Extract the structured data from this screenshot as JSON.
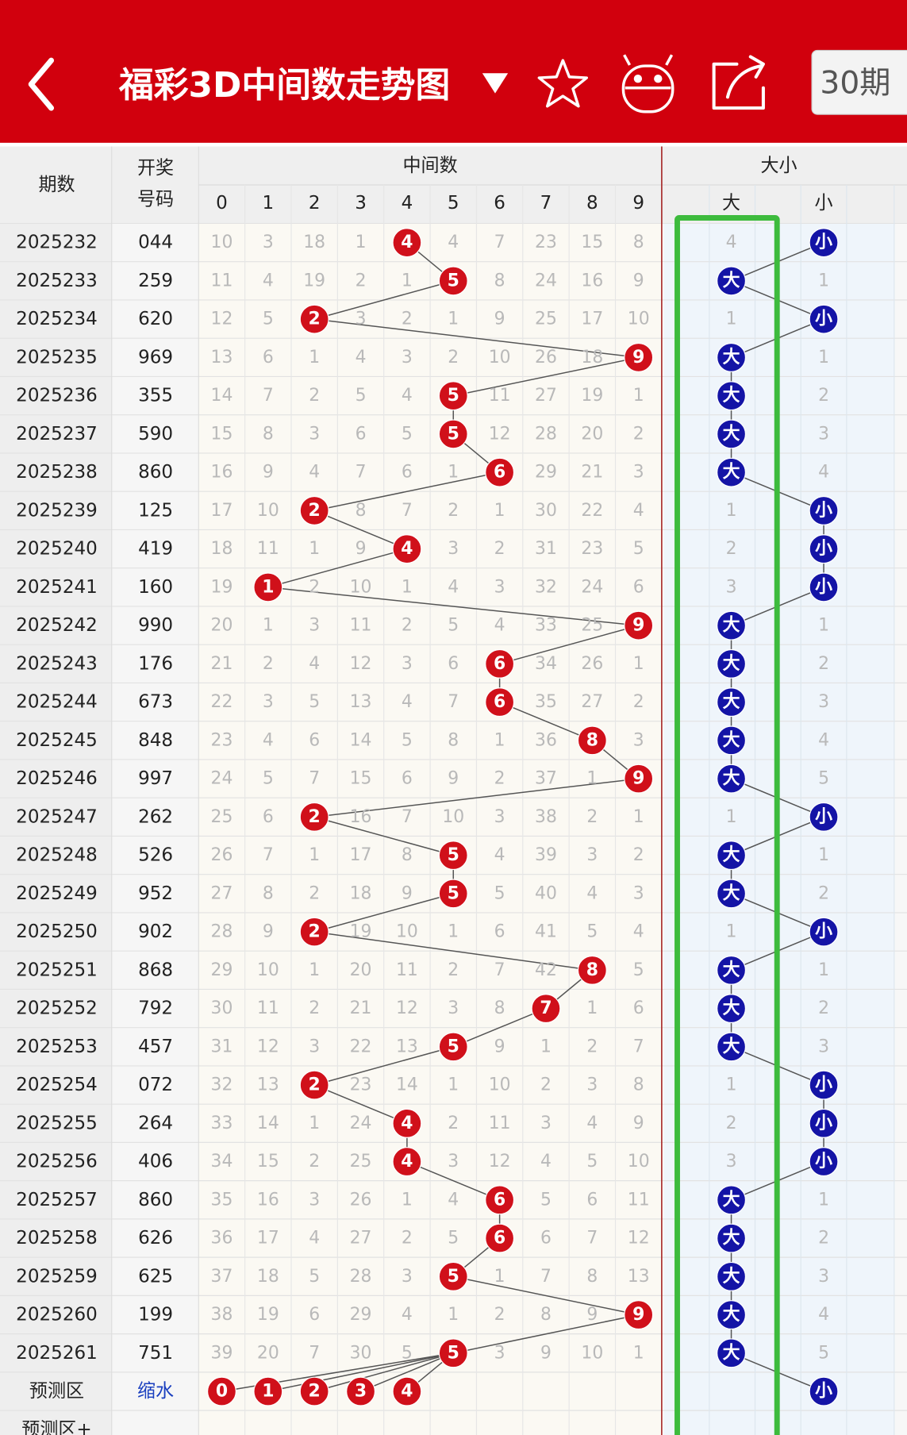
{
  "header": {
    "title": "福彩3D中间数走势图",
    "period_button": "30期"
  },
  "table": {
    "col_period": "期数",
    "col_code": [
      "开奖",
      "号码"
    ],
    "group_middle": "中间数",
    "digits": [
      0,
      1,
      2,
      3,
      4,
      5,
      6,
      7,
      8,
      9
    ],
    "group_size": "大小",
    "col_big": "大",
    "col_small": "小",
    "rows": [
      {
        "period": "2025232",
        "code": "044",
        "cells": [
          10,
          3,
          18,
          1,
          4,
          4,
          7,
          23,
          15,
          8
        ],
        "big": 4,
        "small": "小"
      },
      {
        "period": "2025233",
        "code": "259",
        "cells": [
          11,
          4,
          19,
          2,
          1,
          5,
          8,
          24,
          16,
          9
        ],
        "big": "大",
        "small": 1
      },
      {
        "period": "2025234",
        "code": "620",
        "cells": [
          12,
          5,
          2,
          3,
          2,
          1,
          9,
          25,
          17,
          10
        ],
        "big": 1,
        "small": "小"
      },
      {
        "period": "2025235",
        "code": "969",
        "cells": [
          13,
          6,
          1,
          4,
          3,
          2,
          10,
          26,
          18,
          9
        ],
        "big": "大",
        "small": 1
      },
      {
        "period": "2025236",
        "code": "355",
        "cells": [
          14,
          7,
          2,
          5,
          4,
          5,
          11,
          27,
          19,
          1
        ],
        "big": "大",
        "small": 2
      },
      {
        "period": "2025237",
        "code": "590",
        "cells": [
          15,
          8,
          3,
          6,
          5,
          5,
          12,
          28,
          20,
          2
        ],
        "big": "大",
        "small": 3
      },
      {
        "period": "2025238",
        "code": "860",
        "cells": [
          16,
          9,
          4,
          7,
          6,
          1,
          6,
          29,
          21,
          3
        ],
        "big": "大",
        "small": 4
      },
      {
        "period": "2025239",
        "code": "125",
        "cells": [
          17,
          10,
          2,
          8,
          7,
          2,
          1,
          30,
          22,
          4
        ],
        "big": 1,
        "small": "小"
      },
      {
        "period": "2025240",
        "code": "419",
        "cells": [
          18,
          11,
          1,
          9,
          4,
          3,
          2,
          31,
          23,
          5
        ],
        "big": 2,
        "small": "小"
      },
      {
        "period": "2025241",
        "code": "160",
        "cells": [
          19,
          1,
          2,
          10,
          1,
          4,
          3,
          32,
          24,
          6
        ],
        "big": 3,
        "small": "小"
      },
      {
        "period": "2025242",
        "code": "990",
        "cells": [
          20,
          1,
          3,
          11,
          2,
          5,
          4,
          33,
          25,
          9
        ],
        "big": "大",
        "small": 1
      },
      {
        "period": "2025243",
        "code": "176",
        "cells": [
          21,
          2,
          4,
          12,
          3,
          6,
          6,
          34,
          26,
          1
        ],
        "big": "大",
        "small": 2
      },
      {
        "period": "2025244",
        "code": "673",
        "cells": [
          22,
          3,
          5,
          13,
          4,
          7,
          6,
          35,
          27,
          2
        ],
        "big": "大",
        "small": 3
      },
      {
        "period": "2025245",
        "code": "848",
        "cells": [
          23,
          4,
          6,
          14,
          5,
          8,
          1,
          36,
          8,
          3
        ],
        "big": "大",
        "small": 4
      },
      {
        "period": "2025246",
        "code": "997",
        "cells": [
          24,
          5,
          7,
          15,
          6,
          9,
          2,
          37,
          1,
          9
        ],
        "big": "大",
        "small": 5
      },
      {
        "period": "2025247",
        "code": "262",
        "cells": [
          25,
          6,
          2,
          16,
          7,
          10,
          3,
          38,
          2,
          1
        ],
        "big": 1,
        "small": "小"
      },
      {
        "period": "2025248",
        "code": "526",
        "cells": [
          26,
          7,
          1,
          17,
          8,
          5,
          4,
          39,
          3,
          2
        ],
        "big": "大",
        "small": 1
      },
      {
        "period": "2025249",
        "code": "952",
        "cells": [
          27,
          8,
          2,
          18,
          9,
          5,
          5,
          40,
          4,
          3
        ],
        "big": "大",
        "small": 2
      },
      {
        "period": "2025250",
        "code": "902",
        "cells": [
          28,
          9,
          2,
          19,
          10,
          1,
          6,
          41,
          5,
          4
        ],
        "big": 1,
        "small": "小"
      },
      {
        "period": "2025251",
        "code": "868",
        "cells": [
          29,
          10,
          1,
          20,
          11,
          2,
          7,
          42,
          8,
          5
        ],
        "big": "大",
        "small": 1
      },
      {
        "period": "2025252",
        "code": "792",
        "cells": [
          30,
          11,
          2,
          21,
          12,
          3,
          8,
          7,
          1,
          6
        ],
        "big": "大",
        "small": 2
      },
      {
        "period": "2025253",
        "code": "457",
        "cells": [
          31,
          12,
          3,
          22,
          13,
          5,
          9,
          1,
          2,
          7
        ],
        "big": "大",
        "small": 3
      },
      {
        "period": "2025254",
        "code": "072",
        "cells": [
          32,
          13,
          2,
          23,
          14,
          1,
          10,
          2,
          3,
          8
        ],
        "big": 1,
        "small": "小"
      },
      {
        "period": "2025255",
        "code": "264",
        "cells": [
          33,
          14,
          1,
          24,
          4,
          2,
          11,
          3,
          4,
          9
        ],
        "big": 2,
        "small": "小"
      },
      {
        "period": "2025256",
        "code": "406",
        "cells": [
          34,
          15,
          2,
          25,
          4,
          3,
          12,
          4,
          5,
          10
        ],
        "big": 3,
        "small": "小"
      },
      {
        "period": "2025257",
        "code": "860",
        "cells": [
          35,
          16,
          3,
          26,
          1,
          4,
          6,
          5,
          6,
          11
        ],
        "big": "大",
        "small": 1
      },
      {
        "period": "2025258",
        "code": "626",
        "cells": [
          36,
          17,
          4,
          27,
          2,
          5,
          6,
          6,
          7,
          12
        ],
        "big": "大",
        "small": 2
      },
      {
        "period": "2025259",
        "code": "625",
        "cells": [
          37,
          18,
          5,
          28,
          3,
          5,
          1,
          7,
          8,
          13
        ],
        "big": "大",
        "small": 3
      },
      {
        "period": "2025260",
        "code": "199",
        "cells": [
          38,
          19,
          6,
          29,
          4,
          1,
          2,
          8,
          9,
          9
        ],
        "big": "大",
        "small": 4
      },
      {
        "period": "2025261",
        "code": "751",
        "cells": [
          39,
          20,
          7,
          30,
          5,
          5,
          3,
          9,
          10,
          1
        ],
        "big": "大",
        "small": 5
      }
    ],
    "forecast": {
      "label": "预测区",
      "sub": "缩水",
      "balls": [
        0,
        1,
        2,
        3,
        4
      ],
      "small": "小"
    },
    "forecast_plus": {
      "label": "预测区+"
    }
  }
}
